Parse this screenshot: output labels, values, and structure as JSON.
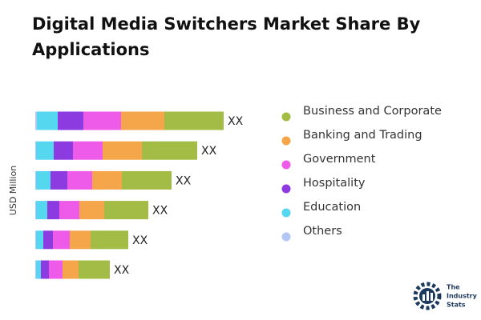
{
  "chart_data": {
    "type": "stacked-bar-horizontal",
    "title": "Digital Media Switchers Market Share By Applications",
    "y_label": "USD Million",
    "categories": [
      null,
      null,
      null,
      null,
      null,
      null
    ],
    "bar_labels": [
      "XX",
      "XX",
      "XX",
      "XX",
      "XX",
      "XX"
    ],
    "xlim": [
      0,
      240
    ],
    "series": [
      {
        "name": "Business and Corporate",
        "color": "#a3bc45",
        "values": [
          74,
          69,
          62,
          55,
          47,
          39
        ]
      },
      {
        "name": "Banking and Trading",
        "color": "#f5a54a",
        "values": [
          54,
          49,
          37,
          31,
          26,
          20
        ]
      },
      {
        "name": "Government",
        "color": "#ee5be9",
        "values": [
          47,
          37,
          31,
          25,
          21,
          17
        ]
      },
      {
        "name": "Hospitality",
        "color": "#8b3be0",
        "values": [
          32,
          24,
          21,
          15,
          12,
          10
        ]
      },
      {
        "name": "Education",
        "color": "#55d7f0",
        "values": [
          26,
          22,
          18,
          14,
          9,
          6
        ]
      },
      {
        "name": "Others",
        "color": "#b3c6f5",
        "values": [
          2,
          1,
          1,
          1,
          1,
          1
        ]
      }
    ],
    "legend": "right"
  },
  "logo": {
    "lines": [
      "The",
      "Industry",
      "Stats"
    ]
  }
}
